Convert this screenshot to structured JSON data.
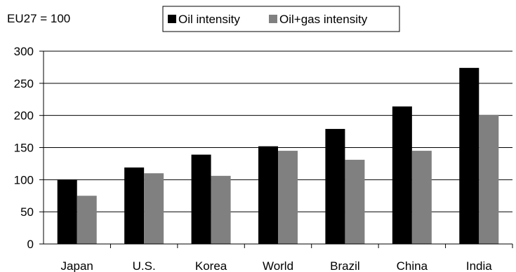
{
  "chart_data": {
    "type": "bar",
    "title": "",
    "xlabel": "",
    "ylabel": "",
    "annotation": "EU27 = 100",
    "categories": [
      "Japan",
      "U.S.",
      "Korea",
      "World",
      "Brazil",
      "China",
      "India"
    ],
    "series": [
      {
        "name": "Oil intensity",
        "color": "#000000",
        "values": [
          100,
          119,
          139,
          152,
          179,
          214,
          274
        ]
      },
      {
        "name": "Oil+gas intensity",
        "color": "#808080",
        "values": [
          75,
          110,
          106,
          145,
          131,
          145,
          201
        ]
      }
    ],
    "ylim": [
      0,
      300
    ],
    "yticks": [
      0,
      50,
      100,
      150,
      200,
      250,
      300
    ],
    "grid": "horizontal",
    "legend_position": "top-center"
  }
}
